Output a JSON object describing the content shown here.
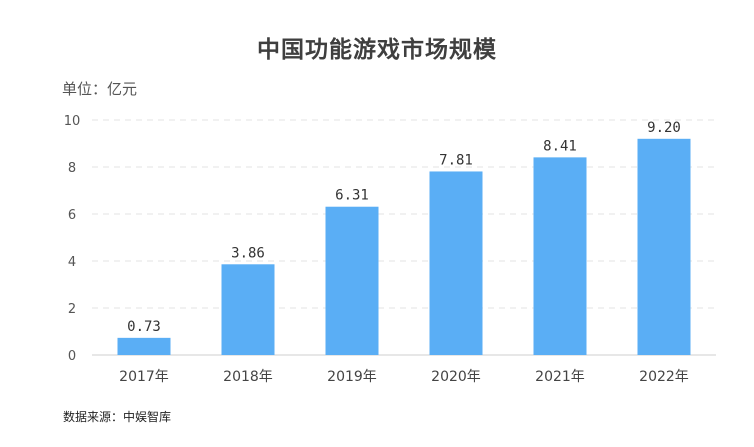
{
  "chart_data": {
    "type": "bar",
    "title": "中国功能游戏市场规模",
    "unit_label": "单位：亿元",
    "categories": [
      "2017年",
      "2018年",
      "2019年",
      "2020年",
      "2021年",
      "2022年"
    ],
    "values": [
      0.73,
      3.86,
      6.31,
      7.81,
      8.41,
      9.2
    ],
    "value_labels": [
      "0.73",
      "3.86",
      "6.31",
      "7.81",
      "8.41",
      "9.20"
    ],
    "yticks": [
      "0",
      "2",
      "4",
      "6",
      "8",
      "10"
    ],
    "ylim": [
      0,
      10
    ],
    "grid": true,
    "bar_color": "#5aaef5",
    "grid_color": "#e3e3e3",
    "source": "数据来源：中娱智库"
  }
}
